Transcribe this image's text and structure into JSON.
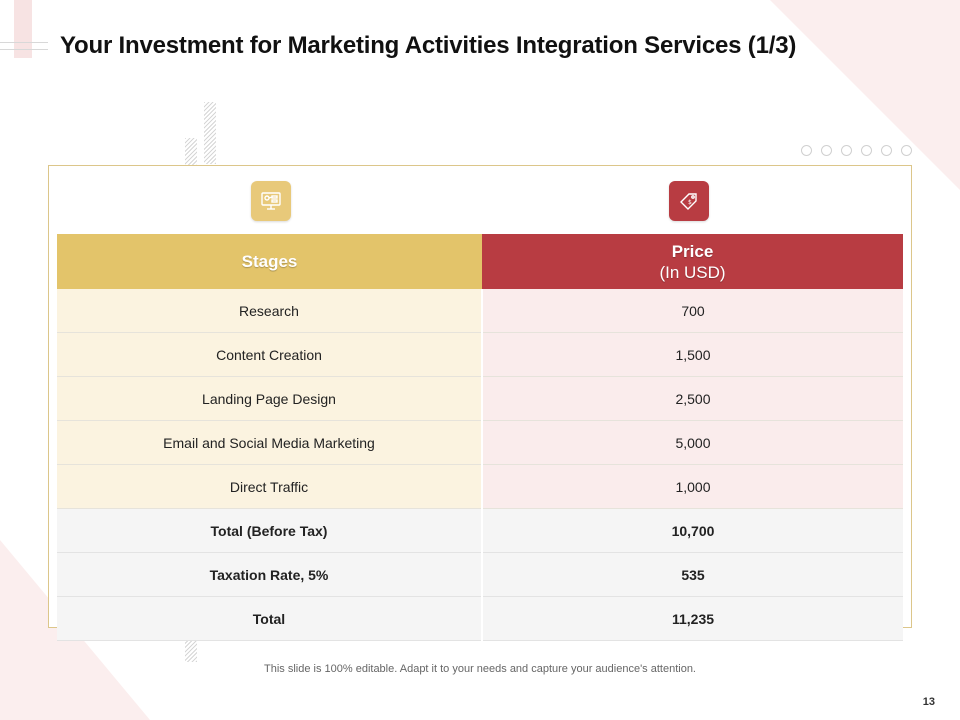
{
  "slide": {
    "title": "Your Investment for Marketing Activities Integration Services (1/3)",
    "footnote": "This slide is 100% editable. Adapt it to your needs and capture your audience's attention.",
    "page_number": "13"
  },
  "icons": {
    "stages": "strategy-chart-icon",
    "price": "price-tag-icon"
  },
  "colors": {
    "stages_header": "#e3c46a",
    "price_header": "#b83c42",
    "stage_cell": "#fbf3e0",
    "price_cell": "#faecec",
    "summary_cell": "#f5f5f5"
  },
  "table": {
    "headers": {
      "stages": "Stages",
      "price": "Price",
      "price_unit": "(In USD)"
    },
    "rows": [
      {
        "stage": "Research",
        "price": "700"
      },
      {
        "stage": "Content Creation",
        "price": "1,500"
      },
      {
        "stage": "Landing Page Design",
        "price": "2,500"
      },
      {
        "stage": "Email and Social Media Marketing",
        "price": "5,000"
      },
      {
        "stage": "Direct Traffic",
        "price": "1,000"
      }
    ],
    "summary": [
      {
        "label": "Total (Before Tax)",
        "value": "10,700"
      },
      {
        "label": "Taxation Rate, 5%",
        "value": "535"
      },
      {
        "label": "Total",
        "value": "11,235"
      }
    ]
  }
}
